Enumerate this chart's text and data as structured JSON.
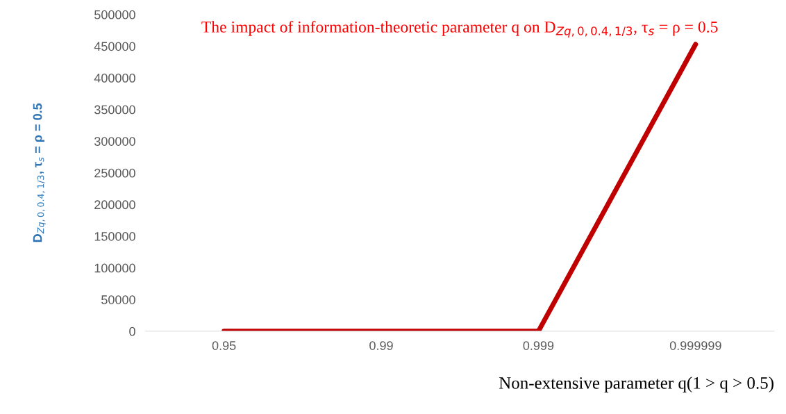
{
  "chart_data": {
    "type": "line",
    "title": "The impact of information-theoretic parameter q on D$_{Zq,0,0.4,1/3}$, τ$_{s}$ = ρ = 0.5",
    "xlabel": "Non-extensive parameter q(1 > q > 0.5)",
    "ylabel": "D$_{Zq,0,0.4,1/3}$, τ$_{s}$ = ρ = 0.5",
    "categories": [
      "0.95",
      "0.99",
      "0.999",
      "0.999999"
    ],
    "series": [
      {
        "color": "#c00000",
        "values": [
          0,
          0,
          0,
          453000
        ]
      }
    ],
    "ylim": [
      0,
      500000
    ],
    "yticks": [
      0,
      50000,
      100000,
      150000,
      200000,
      250000,
      300000,
      350000,
      400000,
      450000,
      500000
    ],
    "grid": false,
    "marker": "none",
    "line_style": "solid"
  }
}
